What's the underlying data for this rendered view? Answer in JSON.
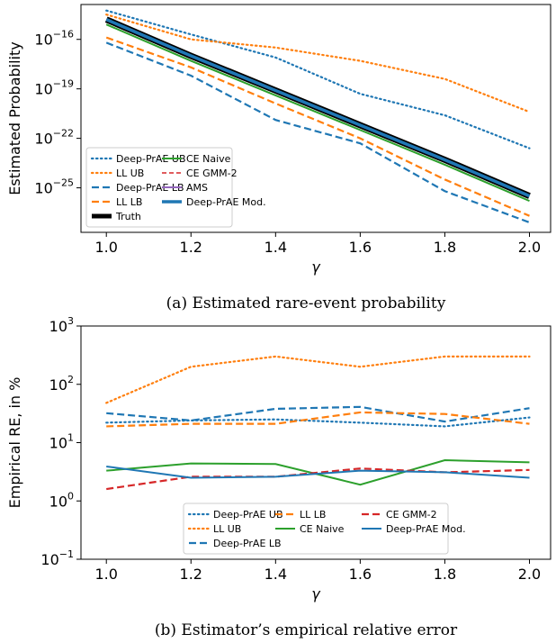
{
  "chart_data": [
    {
      "type": "line",
      "caption": "(a) Estimated rare-event probability",
      "xlabel": "γ",
      "ylabel": "Estimated Probability",
      "x": [
        1.0,
        1.2,
        1.4,
        1.6,
        1.8,
        2.0
      ],
      "xlim": [
        0.94,
        2.05
      ],
      "xticks": [
        {
          "value": 1.0,
          "label": "1.0"
        },
        {
          "value": 1.2,
          "label": "1.2"
        },
        {
          "value": 1.4,
          "label": "1.4"
        },
        {
          "value": 1.6,
          "label": "1.6"
        },
        {
          "value": 1.8,
          "label": "1.8"
        },
        {
          "value": 2.0,
          "label": "2.0"
        }
      ],
      "ylim": [
        2e-28,
        1.3e-14
      ],
      "log_y": true,
      "yticks": [
        {
          "value": 1e-16,
          "label": "10",
          "exponent": "−16"
        },
        {
          "value": 1e-19,
          "label": "10",
          "exponent": "−19"
        },
        {
          "value": 1e-22,
          "label": "10",
          "exponent": "−22"
        },
        {
          "value": 1e-25,
          "label": "10",
          "exponent": "−25"
        }
      ],
      "legend_loc": "lower left",
      "legend_columns": 2,
      "series": [
        {
          "name": "Deep-PrAE UB",
          "color": "#1f77b4",
          "style": "dotted",
          "values": [
            5.6e-15,
            2e-16,
            8e-18,
            5e-20,
            2.5e-21,
            2.5e-23
          ]
        },
        {
          "name": "LL UB",
          "color": "#ff7f0e",
          "style": "dotted",
          "values": [
            3.2e-15,
            1e-16,
            3.2e-17,
            5e-18,
            4e-19,
            4e-21
          ]
        },
        {
          "name": "Deep-PrAE LB",
          "color": "#1f77b4",
          "style": "dashed",
          "values": [
            6.3e-17,
            6.3e-19,
            1.3e-21,
            5e-23,
            6.3e-26,
            8e-28
          ]
        },
        {
          "name": "LL LB",
          "color": "#ff7f0e",
          "style": "dashed",
          "values": [
            1.3e-16,
            2e-18,
            1.3e-20,
            1e-22,
            3.2e-25,
            2e-27
          ]
        },
        {
          "name": "Truth",
          "color": "#000000",
          "style": "thick",
          "values": [
            1.6e-15,
            1e-17,
            8e-20,
            6.3e-22,
            5e-24,
            3.2e-26
          ]
        },
        {
          "name": "CE Naive",
          "color": "#2ca02c",
          "style": "solid",
          "values": [
            8e-16,
            5e-18,
            4e-20,
            3.2e-22,
            2.5e-24,
            1.6e-26
          ]
        },
        {
          "name": "CE GMM-2",
          "color": "#d62728",
          "style": "thin-dashed",
          "values": [
            1.6e-15,
            1e-17,
            8e-20,
            6.3e-22,
            5e-24,
            3.2e-26
          ]
        },
        {
          "name": "AMS",
          "color": "#9467bd",
          "style": "solid",
          "values": [
            1.6e-15,
            1e-17,
            8e-20,
            6.3e-22,
            5e-24,
            3.2e-26
          ]
        },
        {
          "name": "Deep-PrAE Mod.",
          "color": "#1f77b4",
          "style": "bold",
          "values": [
            1.6e-15,
            1e-17,
            8e-20,
            6.3e-22,
            5e-24,
            3.2e-26
          ]
        }
      ]
    },
    {
      "type": "line",
      "caption": "(b) Estimator’s empirical relative error",
      "xlabel": "γ",
      "ylabel": "Empirical RE, in %",
      "x": [
        1.0,
        1.2,
        1.4,
        1.6,
        1.8,
        2.0
      ],
      "xlim": [
        0.94,
        2.05
      ],
      "xticks": [
        {
          "value": 1.0,
          "label": "1.0"
        },
        {
          "value": 1.2,
          "label": "1.2"
        },
        {
          "value": 1.4,
          "label": "1.4"
        },
        {
          "value": 1.6,
          "label": "1.6"
        },
        {
          "value": 1.8,
          "label": "1.8"
        },
        {
          "value": 2.0,
          "label": "2.0"
        }
      ],
      "ylim": [
        0.1,
        1000
      ],
      "log_y": true,
      "yticks": [
        {
          "value": 0.1,
          "label": "10",
          "exponent": "−1"
        },
        {
          "value": 1,
          "label": "10",
          "exponent": "0"
        },
        {
          "value": 10,
          "label": "10",
          "exponent": "1"
        },
        {
          "value": 100,
          "label": "10",
          "exponent": "2"
        },
        {
          "value": 1000,
          "label": "10",
          "exponent": "3"
        }
      ],
      "legend_loc": "lower center",
      "legend_columns": 3,
      "series": [
        {
          "name": "Deep-PrAE UB",
          "color": "#1f77b4",
          "style": "dotted",
          "values": [
            22,
            24,
            25,
            22,
            19,
            27
          ]
        },
        {
          "name": "LL UB",
          "color": "#ff7f0e",
          "style": "dotted",
          "values": [
            48,
            200,
            300,
            200,
            300,
            300
          ]
        },
        {
          "name": "Deep-PrAE LB",
          "color": "#1f77b4",
          "style": "dashed",
          "values": [
            32,
            24,
            38,
            41,
            23,
            39
          ]
        },
        {
          "name": "LL LB",
          "color": "#ff7f0e",
          "style": "dashed",
          "values": [
            19,
            21,
            21,
            33,
            31,
            21
          ]
        },
        {
          "name": "CE Naive",
          "color": "#2ca02c",
          "style": "solid",
          "values": [
            3.3,
            4.4,
            4.3,
            1.9,
            5,
            4.6
          ]
        },
        {
          "name": "CE GMM-2",
          "color": "#d62728",
          "style": "dashed",
          "values": [
            1.6,
            2.6,
            2.6,
            3.6,
            3.1,
            3.4
          ]
        },
        {
          "name": "Deep-PrAE Mod.",
          "color": "#1f77b4",
          "style": "solid",
          "values": [
            3.9,
            2.5,
            2.6,
            3.3,
            3.1,
            2.5
          ]
        }
      ]
    }
  ]
}
